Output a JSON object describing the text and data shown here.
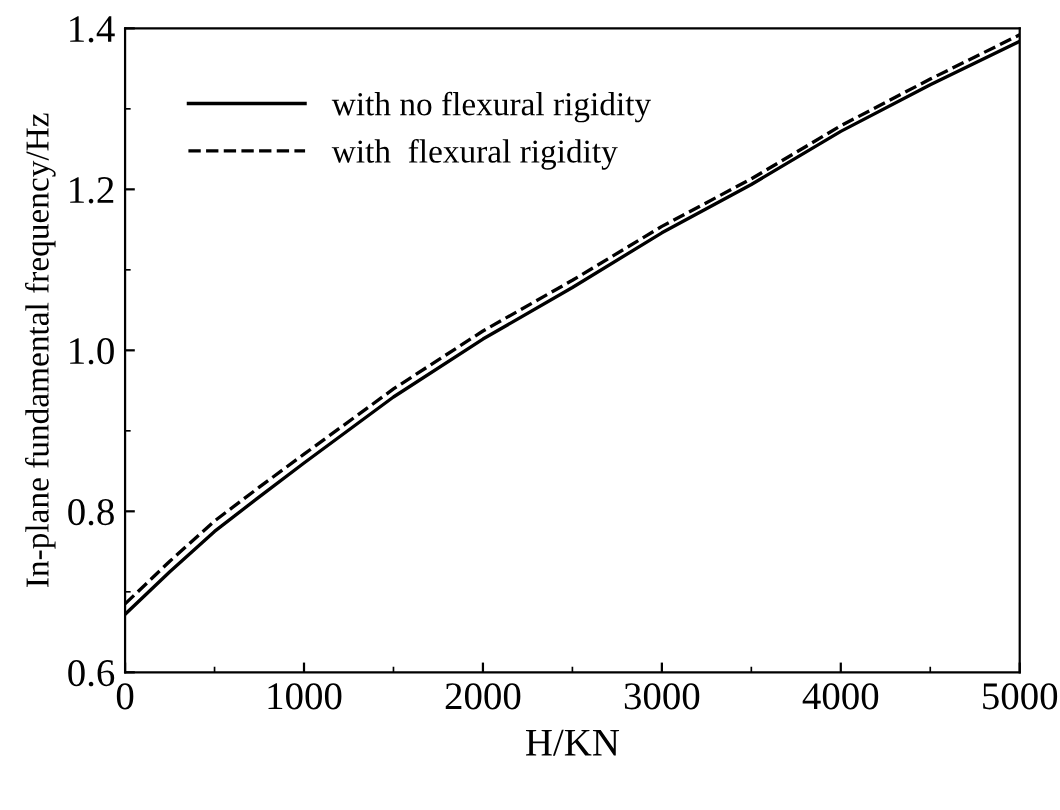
{
  "chart_data": {
    "type": "line",
    "xlabel": "H/KN",
    "ylabel": "In-plane fundamental frequency/Hz",
    "x": [
      0,
      250,
      500,
      750,
      1000,
      1500,
      2000,
      2500,
      3000,
      3500,
      4000,
      4500,
      5000
    ],
    "series": [
      {
        "name": "with no flexural rigidity",
        "color": "#000000",
        "line_style": "solid",
        "values": [
          0.672,
          0.725,
          0.775,
          0.818,
          0.86,
          0.942,
          1.014,
          1.078,
          1.146,
          1.206,
          1.272,
          1.33,
          1.384
        ]
      },
      {
        "name": "with  flexural rigidity",
        "color": "#000000",
        "line_style": "dashed",
        "values": [
          0.685,
          0.738,
          0.788,
          0.83,
          0.871,
          0.952,
          1.024,
          1.087,
          1.154,
          1.213,
          1.279,
          1.337,
          1.392
        ]
      }
    ],
    "xlim": [
      0,
      5000
    ],
    "ylim": [
      0.6,
      1.4
    ],
    "xticks": [
      0,
      1000,
      2000,
      3000,
      4000,
      5000
    ],
    "yticks": [
      0.6,
      0.8,
      {
        "value": 1.0,
        "label": "1.0"
      },
      1.2,
      1.4
    ],
    "grid": false,
    "legend": "top left",
    "marker": "none"
  }
}
